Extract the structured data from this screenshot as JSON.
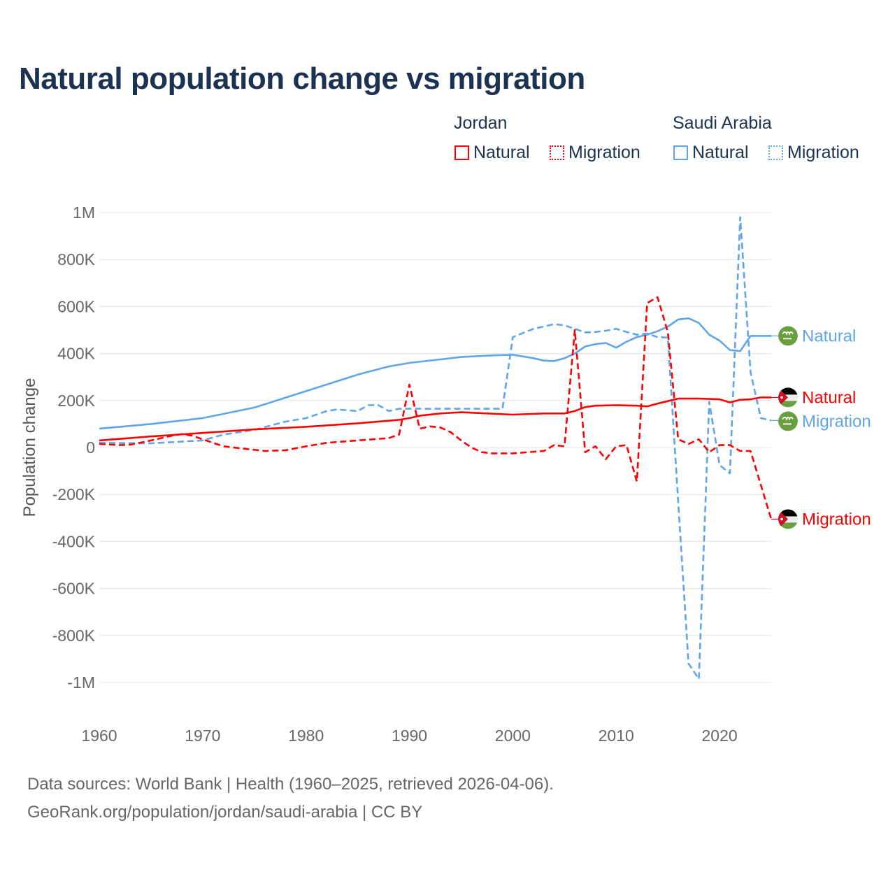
{
  "chart_data": {
    "type": "line",
    "title": "Natural population change vs migration",
    "xlabel": "",
    "ylabel": "Population change",
    "xlim": [
      1960,
      2025
    ],
    "ylim": [
      -1000000,
      1000000
    ],
    "x_ticks": [
      1960,
      1970,
      1980,
      1990,
      2000,
      2010,
      2020
    ],
    "x_tick_labels": [
      "1960",
      "1970",
      "1980",
      "1990",
      "2000",
      "2010",
      "2020"
    ],
    "y_ticks": [
      1000000,
      800000,
      600000,
      400000,
      200000,
      0,
      -200000,
      -400000,
      -600000,
      -800000,
      -1000000
    ],
    "y_tick_labels": [
      "1M",
      "800K",
      "600K",
      "400K",
      "200K",
      "0",
      "-200K",
      "-400K",
      "-600K",
      "-800K",
      "-1M"
    ],
    "grid": true,
    "legend_placement": "top-right",
    "legend_groups": [
      {
        "country": "Jordan",
        "items": [
          "Natural",
          "Migration"
        ]
      },
      {
        "country": "Saudi Arabia",
        "items": [
          "Natural",
          "Migration"
        ]
      }
    ],
    "colors": {
      "Jordan": "#ff0000",
      "Saudi Arabia": "#5ea5eb"
    },
    "series": [
      {
        "name": "Jordan Natural",
        "country": "Jordan",
        "kind": "Natural",
        "label": "Natural",
        "dashed": false,
        "x": [
          1960,
          1965,
          1970,
          1975,
          1980,
          1985,
          1989,
          1990,
          1991,
          1993,
          1995,
          1997,
          2000,
          2003,
          2005,
          2006,
          2007,
          2008,
          2010,
          2012,
          2013,
          2014,
          2016,
          2018,
          2020,
          2021,
          2022,
          2023,
          2024,
          2025
        ],
        "y": [
          30000,
          47000,
          62000,
          77000,
          88000,
          103000,
          118000,
          125000,
          135000,
          145000,
          150000,
          146000,
          140000,
          145000,
          145000,
          155000,
          172000,
          178000,
          180000,
          178000,
          175000,
          187000,
          208000,
          208000,
          205000,
          192000,
          203000,
          205000,
          213000,
          213000
        ]
      },
      {
        "name": "Jordan Migration",
        "country": "Jordan",
        "kind": "Migration",
        "label": "Migration",
        "dashed": true,
        "x": [
          1960,
          1962,
          1963,
          1965,
          1967,
          1968,
          1969,
          1970,
          1972,
          1974,
          1976,
          1978,
          1980,
          1982,
          1985,
          1988,
          1989,
          1990,
          1991,
          1992,
          1993,
          1994,
          1995,
          1996,
          1997,
          1998,
          2000,
          2003,
          2004,
          2005,
          2006,
          2007,
          2008,
          2009,
          2010,
          2011,
          2012,
          2013,
          2014,
          2015,
          2016,
          2017,
          2018,
          2019,
          2020,
          2021,
          2022,
          2023,
          2024,
          2025
        ],
        "y": [
          15000,
          10000,
          12000,
          30000,
          50000,
          57000,
          50000,
          35000,
          5000,
          -5000,
          -15000,
          -12000,
          5000,
          20000,
          30000,
          40000,
          55000,
          268000,
          80000,
          90000,
          85000,
          65000,
          30000,
          0,
          -20000,
          -25000,
          -25000,
          -15000,
          10000,
          5000,
          500000,
          -20000,
          5000,
          -50000,
          5000,
          10000,
          -145000,
          615000,
          640000,
          490000,
          35000,
          15000,
          35000,
          -20000,
          10000,
          10000,
          -15000,
          -15000,
          -160000,
          -305000
        ]
      },
      {
        "name": "Saudi Arabia Natural",
        "country": "Saudi Arabia",
        "kind": "Natural",
        "label": "Natural",
        "dashed": false,
        "x": [
          1960,
          1965,
          1970,
          1975,
          1980,
          1985,
          1988,
          1990,
          1995,
          1998,
          2000,
          2002,
          2003,
          2004,
          2005,
          2006,
          2007,
          2008,
          2009,
          2010,
          2011,
          2012,
          2013,
          2014,
          2015,
          2016,
          2017,
          2018,
          2019,
          2020,
          2021,
          2022,
          2023,
          2024,
          2025
        ],
        "y": [
          80000,
          100000,
          125000,
          170000,
          240000,
          310000,
          345000,
          360000,
          385000,
          392000,
          395000,
          380000,
          370000,
          368000,
          380000,
          400000,
          430000,
          440000,
          445000,
          425000,
          450000,
          470000,
          480000,
          495000,
          515000,
          545000,
          550000,
          530000,
          480000,
          455000,
          415000,
          410000,
          475000,
          475000,
          475000
        ]
      },
      {
        "name": "Saudi Arabia Migration",
        "country": "Saudi Arabia",
        "kind": "Migration",
        "label": "Migration",
        "dashed": true,
        "x": [
          1960,
          1965,
          1970,
          1972,
          1975,
          1978,
          1980,
          1982,
          1983,
          1985,
          1986,
          1987,
          1988,
          1989,
          1990,
          1995,
          1999,
          2000,
          2002,
          2004,
          2005,
          2006,
          2007,
          2008,
          2009,
          2010,
          2011,
          2012,
          2013,
          2014,
          2015,
          2016,
          2017,
          2018,
          2019,
          2020,
          2021,
          2022,
          2023,
          2024,
          2025
        ],
        "y": [
          20000,
          18000,
          30000,
          55000,
          75000,
          110000,
          125000,
          155000,
          162000,
          155000,
          180000,
          180000,
          155000,
          165000,
          165000,
          165000,
          165000,
          470000,
          505000,
          525000,
          520000,
          505000,
          490000,
          492000,
          497000,
          505000,
          492000,
          480000,
          485000,
          470000,
          468000,
          -230000,
          -920000,
          -985000,
          195000,
          -75000,
          -110000,
          980000,
          320000,
          125000,
          115000
        ]
      }
    ]
  },
  "footer": {
    "line1": "Data sources: World Bank | Health (1960–2025, retrieved 2026-04-06).",
    "line2": "GeoRank.org/population/jordan/saudi-arabia | CC BY"
  }
}
